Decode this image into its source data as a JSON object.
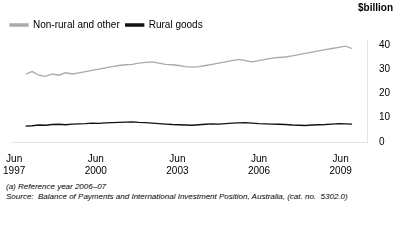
{
  "chart_data": {
    "type": "line",
    "ylabel": "$billion",
    "x": [
      1997.42,
      1997.6649,
      1997.9098,
      1998.1547,
      1998.3996,
      1998.6445,
      1998.8894,
      1999.1343,
      1999.3792,
      1999.6241,
      1999.869,
      2000.1139,
      2000.3588,
      2000.6037,
      2000.8486,
      2001.0935,
      2001.3384,
      2001.5833,
      2001.8282,
      2002.0731,
      2002.318,
      2002.5629,
      2002.8078,
      2003.0527,
      2003.2976,
      2003.5424,
      2003.7873,
      2004.0322,
      2004.2771,
      2004.522,
      2004.7669,
      2005.0118,
      2005.2567,
      2005.5016,
      2005.7465,
      2005.9914,
      2006.2363,
      2006.4812,
      2006.7261,
      2006.971,
      2007.2159,
      2007.4608,
      2007.7057,
      2007.9506,
      2008.1955,
      2008.4404,
      2008.6853,
      2008.9302,
      2009.1751,
      2009.42
    ],
    "series": [
      {
        "name": "Rural goods",
        "color": "#111111",
        "values": [
          6.5,
          6.7,
          7.0,
          6.9,
          7.2,
          7.3,
          7.1,
          7.4,
          7.5,
          7.6,
          7.8,
          7.7,
          7.9,
          8.0,
          8.1,
          8.2,
          8.3,
          8.1,
          8.0,
          7.8,
          7.6,
          7.4,
          7.2,
          7.1,
          7.0,
          6.9,
          7.1,
          7.3,
          7.5,
          7.4,
          7.6,
          7.8,
          7.9,
          8.0,
          7.8,
          7.6,
          7.5,
          7.4,
          7.3,
          7.2,
          7.0,
          6.9,
          6.8,
          7.0,
          7.1,
          7.2,
          7.4,
          7.6,
          7.5,
          7.4
        ]
      },
      {
        "name": "Non-rural and other",
        "color": "#aaaaaa",
        "values": [
          28.0,
          29.0,
          27.5,
          27.0,
          28.0,
          27.5,
          28.5,
          28.0,
          28.5,
          29.0,
          29.5,
          30.0,
          30.5,
          31.0,
          31.5,
          31.8,
          32.0,
          32.5,
          32.8,
          33.0,
          32.5,
          32.0,
          31.8,
          31.5,
          31.0,
          30.8,
          31.0,
          31.5,
          32.0,
          32.5,
          33.0,
          33.5,
          34.0,
          33.5,
          33.0,
          33.5,
          34.0,
          34.5,
          34.8,
          35.0,
          35.5,
          36.0,
          36.5,
          37.0,
          37.5,
          38.0,
          38.5,
          39.0,
          39.5,
          38.5
        ]
      }
    ],
    "xlim": [
      1996.9,
      2010.0
    ],
    "xticks": [
      {
        "value": 1997,
        "label": "Jun 1997"
      },
      {
        "value": 2000,
        "label": "Jun 2000"
      },
      {
        "value": 2003,
        "label": "Jun 2003"
      },
      {
        "value": 2006,
        "label": "Jun 2006"
      },
      {
        "value": 2009,
        "label": "Jun 2009"
      }
    ],
    "ylim": [
      0,
      42
    ],
    "yticks": [
      0,
      10,
      20,
      30,
      40
    ],
    "grid": false,
    "legend": "top left",
    "annotations": [
      "(a) Reference year 2006–07",
      "Source:  Balance of Payments and International Investment Position, Australia, (cat. no.  5302.0)"
    ]
  }
}
